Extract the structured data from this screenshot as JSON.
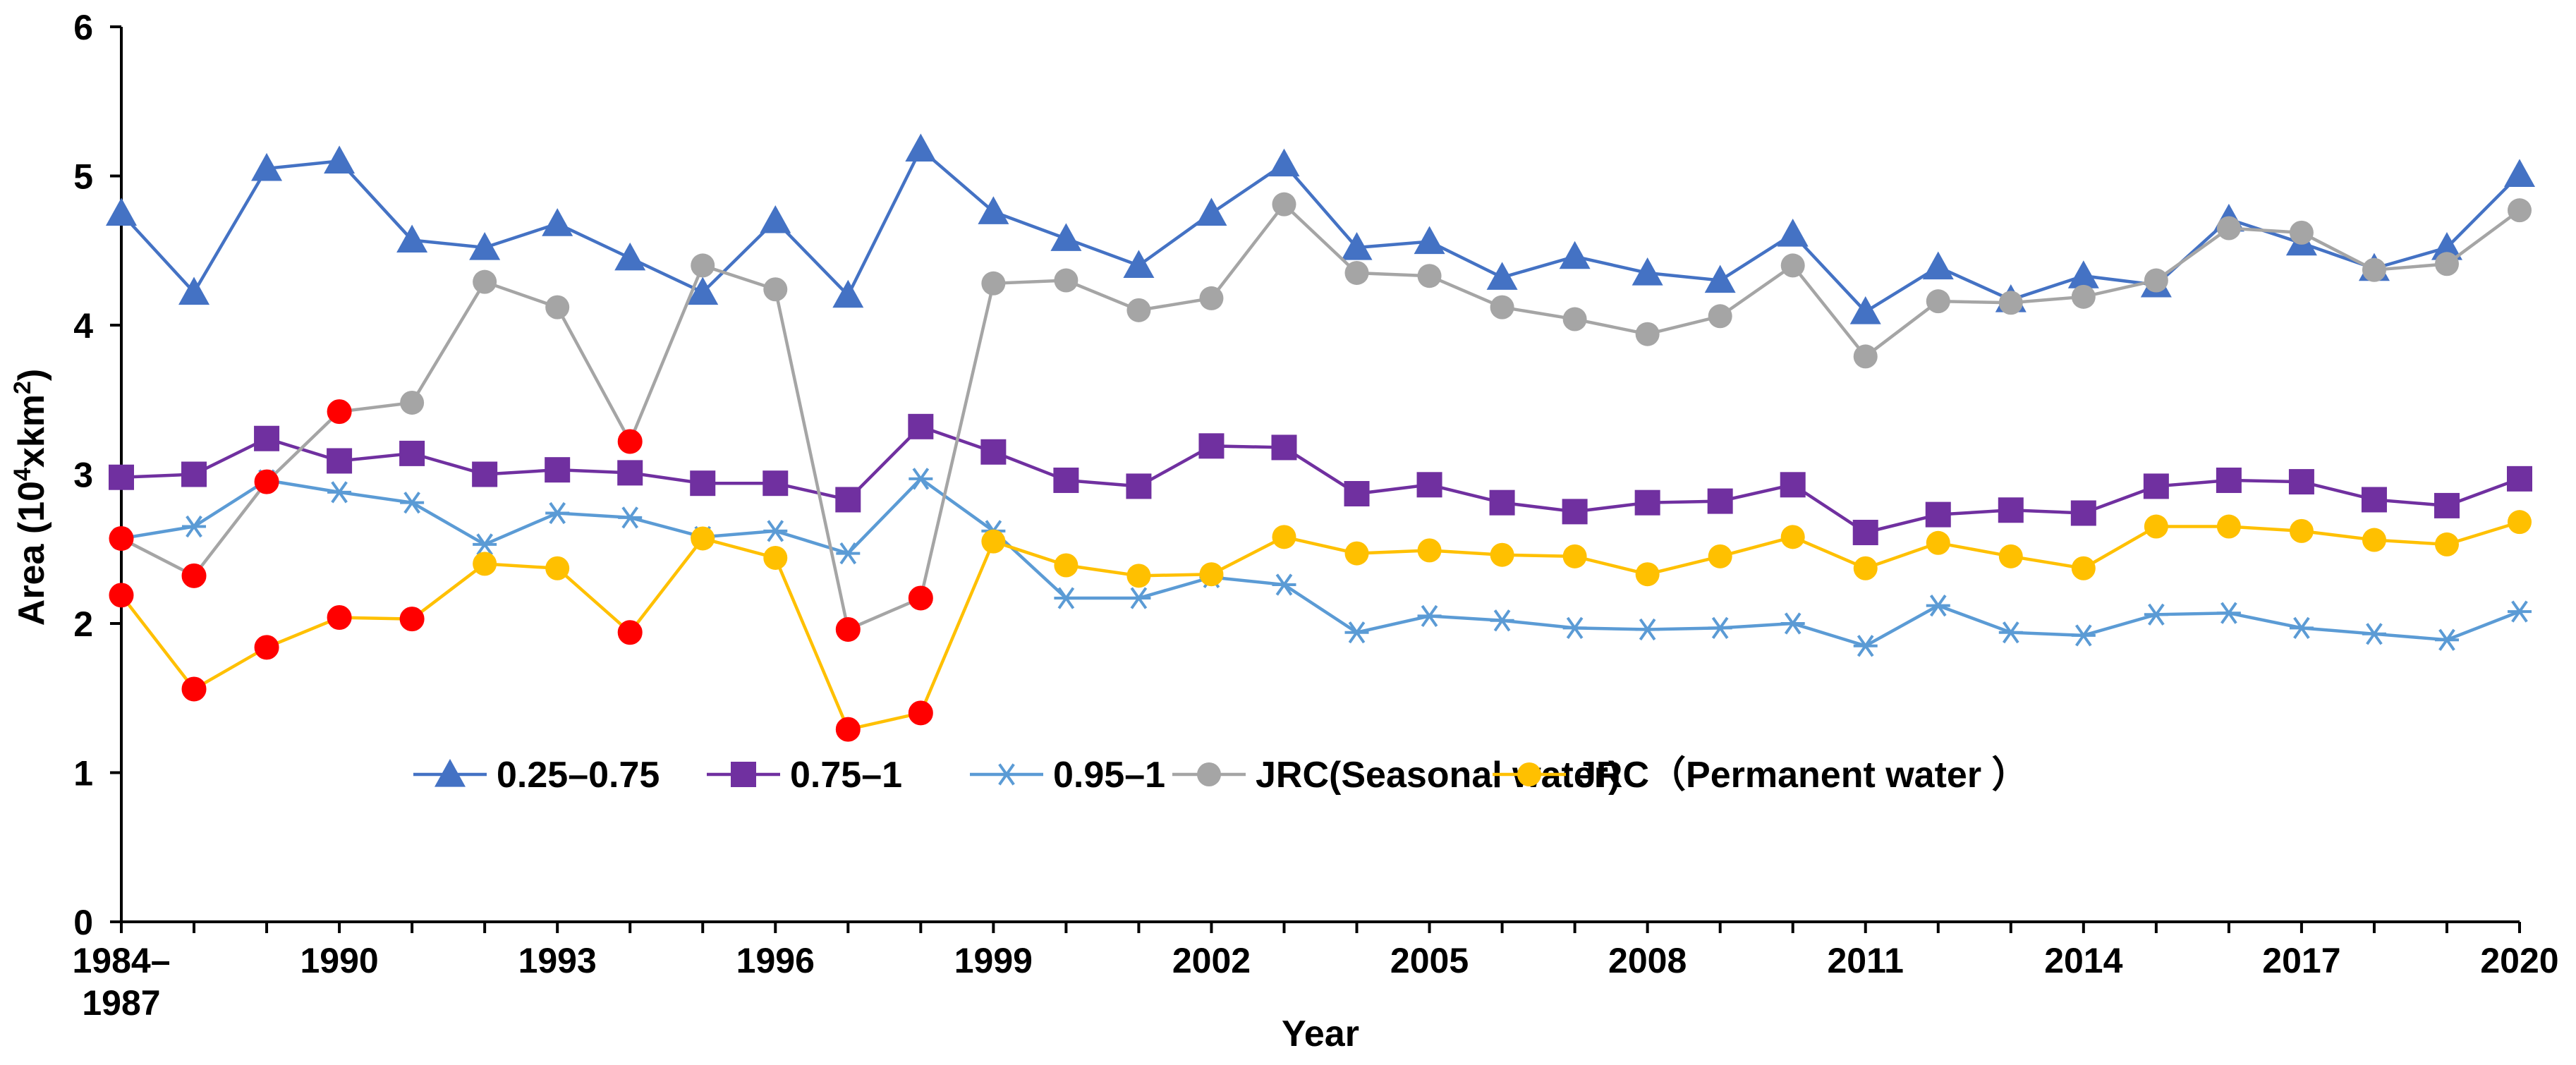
{
  "chart_data": {
    "type": "line",
    "title": "",
    "xlabel": "Year",
    "ylabel": "Area (10⁴xkm²)",
    "ylabel_parts": {
      "prefix": "Area (10",
      "sup1": "4",
      "middle": "xkm",
      "sup2": "2",
      "suffix": ")"
    },
    "ylim": [
      0,
      6
    ],
    "yticks": [
      "0",
      "1",
      "2",
      "3",
      "4",
      "5",
      "6"
    ],
    "x": [
      "1984–1987",
      "1988",
      "1989",
      "1990",
      "1991",
      "1992",
      "1993",
      "1994",
      "1995",
      "1996",
      "1997",
      "1998",
      "1999",
      "2000",
      "2001",
      "2002",
      "2003",
      "2004",
      "2005",
      "2006",
      "2007",
      "2008",
      "2009",
      "2010",
      "2011",
      "2012",
      "2013",
      "2014",
      "2015",
      "2016",
      "2017",
      "2018",
      "2019",
      "2020"
    ],
    "xtick_labels": [
      {
        "index": 0,
        "lines": [
          "1984–",
          "1987"
        ]
      },
      {
        "index": 3,
        "lines": [
          "1990"
        ]
      },
      {
        "index": 6,
        "lines": [
          "1993"
        ]
      },
      {
        "index": 9,
        "lines": [
          "1996"
        ]
      },
      {
        "index": 12,
        "lines": [
          "1999"
        ]
      },
      {
        "index": 15,
        "lines": [
          "2002"
        ]
      },
      {
        "index": 18,
        "lines": [
          "2005"
        ]
      },
      {
        "index": 21,
        "lines": [
          "2008"
        ]
      },
      {
        "index": 24,
        "lines": [
          "2011"
        ]
      },
      {
        "index": 27,
        "lines": [
          "2014"
        ]
      },
      {
        "index": 30,
        "lines": [
          "2017"
        ]
      },
      {
        "index": 33,
        "lines": [
          "2020"
        ]
      }
    ],
    "legend_position": "center",
    "series": [
      {
        "name": "0.25–0.75",
        "color": "#4472C4",
        "marker": "triangle",
        "values": [
          4.75,
          4.22,
          5.05,
          5.1,
          4.57,
          4.52,
          4.68,
          4.45,
          4.22,
          4.7,
          4.2,
          5.18,
          4.76,
          4.58,
          4.4,
          4.75,
          5.08,
          4.52,
          4.56,
          4.32,
          4.46,
          4.35,
          4.3,
          4.61,
          4.09,
          4.39,
          4.17,
          4.33,
          4.27,
          4.71,
          4.55,
          4.38,
          4.52,
          5.01
        ]
      },
      {
        "name": "0.75–1",
        "color": "#7030A0",
        "marker": "square",
        "values": [
          2.98,
          3.0,
          3.24,
          3.09,
          3.14,
          3.0,
          3.03,
          3.01,
          2.94,
          2.94,
          2.83,
          3.32,
          3.15,
          2.96,
          2.92,
          3.19,
          3.18,
          2.87,
          2.93,
          2.81,
          2.75,
          2.81,
          2.82,
          2.93,
          2.61,
          2.73,
          2.76,
          2.74,
          2.92,
          2.96,
          2.95,
          2.83,
          2.79,
          2.97
        ]
      },
      {
        "name": "0.95–1",
        "color": "#5B9BD5",
        "marker": "asterisk",
        "values": [
          2.57,
          2.65,
          2.96,
          2.88,
          2.81,
          2.53,
          2.74,
          2.71,
          2.58,
          2.62,
          2.47,
          2.97,
          2.62,
          2.17,
          2.17,
          2.31,
          2.26,
          1.94,
          2.05,
          2.02,
          1.97,
          1.96,
          1.97,
          2.0,
          1.85,
          2.12,
          1.94,
          1.92,
          2.06,
          2.07,
          1.97,
          1.93,
          1.89,
          2.08
        ]
      },
      {
        "name": "JRC(Seasonal water)",
        "color": "#A5A5A5",
        "marker": "circle",
        "values": [
          2.57,
          2.32,
          2.95,
          3.42,
          3.48,
          4.29,
          4.12,
          3.22,
          4.4,
          4.24,
          1.96,
          2.17,
          4.28,
          4.3,
          4.1,
          4.18,
          4.81,
          4.35,
          4.33,
          4.12,
          4.04,
          3.94,
          4.06,
          4.4,
          3.79,
          4.16,
          4.15,
          4.19,
          4.3,
          4.65,
          4.62,
          4.37,
          4.41,
          4.77
        ],
        "highlight_indices": [
          0,
          1,
          2,
          3,
          7,
          10,
          11
        ],
        "highlight_color": "#FF0000"
      },
      {
        "name": "JRC（Permanent water ）",
        "color": "#FFC000",
        "marker": "circle",
        "values": [
          2.19,
          1.56,
          1.84,
          2.04,
          2.03,
          2.4,
          2.37,
          1.94,
          2.57,
          2.44,
          1.29,
          1.4,
          2.55,
          2.39,
          2.32,
          2.33,
          2.58,
          2.47,
          2.49,
          2.46,
          2.45,
          2.33,
          2.45,
          2.58,
          2.37,
          2.54,
          2.45,
          2.37,
          2.65,
          2.65,
          2.62,
          2.56,
          2.53,
          2.68
        ],
        "highlight_indices": [
          0,
          1,
          2,
          3,
          4,
          7,
          10,
          11
        ],
        "highlight_color": "#FF0000"
      }
    ]
  }
}
